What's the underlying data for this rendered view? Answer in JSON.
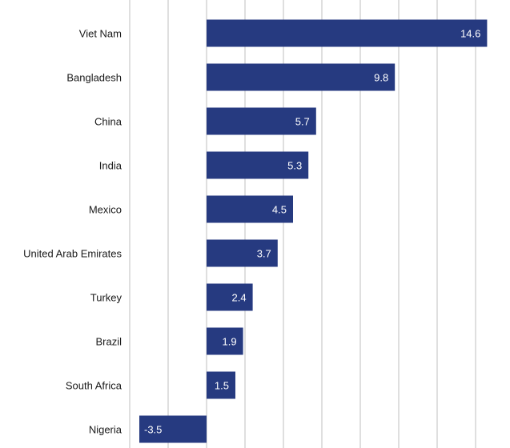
{
  "chart_data": {
    "type": "bar",
    "orientation": "horizontal",
    "title": "",
    "xlabel": "",
    "ylabel": "",
    "categories": [
      "Viet Nam",
      "Bangladesh",
      "China",
      "India",
      "Mexico",
      "United Arab Emirates",
      "Turkey",
      "Brazil",
      "South Africa",
      "Nigeria"
    ],
    "values": [
      14.6,
      9.8,
      5.7,
      5.3,
      4.5,
      3.7,
      2.4,
      1.9,
      1.5,
      -3.5
    ],
    "value_labels": [
      "14.6",
      "9.8",
      "5.7",
      "5.3",
      "4.5",
      "3.7",
      "2.4",
      "1.9",
      "1.5",
      "-3.5"
    ],
    "xlim": [
      -4,
      15
    ],
    "grid_step": 2,
    "grid": true,
    "legend": "none",
    "bar_color": "#263a80",
    "grid_color": "#bfbfbf"
  }
}
